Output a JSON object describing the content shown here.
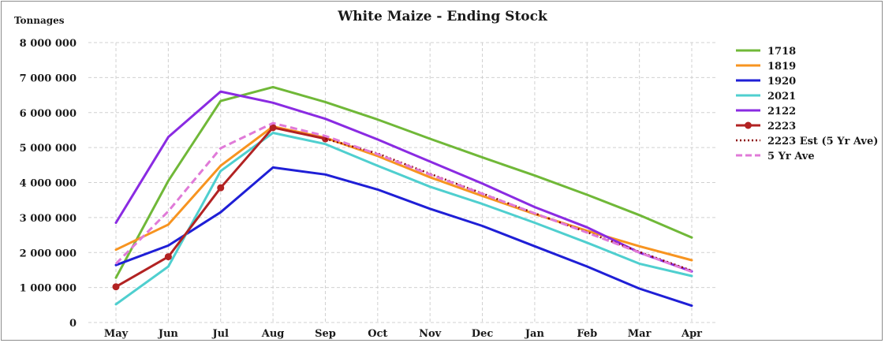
{
  "chart_data": {
    "type": "line",
    "title": "White Maize - Ending Stock",
    "ylabel": "Tonnages",
    "xlabel": "",
    "categories": [
      "May",
      "Jun",
      "Jul",
      "Aug",
      "Sep",
      "Oct",
      "Nov",
      "Dec",
      "Jan",
      "Feb",
      "Mar",
      "Apr"
    ],
    "ylim": [
      0,
      8000000
    ],
    "yticks": [
      0,
      1000000,
      2000000,
      3000000,
      4000000,
      5000000,
      6000000,
      7000000,
      8000000
    ],
    "ytick_labels": [
      "0",
      "1 000 000",
      "2 000 000",
      "3 000 000",
      "4 000 000",
      "5 000 000",
      "6 000 000",
      "7 000 000",
      "8 000 000"
    ],
    "grid": true,
    "legend_position": "right",
    "series": [
      {
        "name": "1718",
        "color": "#70b838",
        "style": "solid",
        "values": [
          1280000,
          4050000,
          6330000,
          6730000,
          6300000,
          5800000,
          5250000,
          4720000,
          4200000,
          3650000,
          3070000,
          2430000
        ]
      },
      {
        "name": "1819",
        "color": "#f79420",
        "style": "solid",
        "values": [
          2080000,
          2800000,
          4480000,
          5600000,
          5280000,
          4760000,
          4150000,
          3620000,
          3100000,
          2620000,
          2180000,
          1780000
        ]
      },
      {
        "name": "1920",
        "color": "#1f1fd6",
        "style": "solid",
        "values": [
          1640000,
          2200000,
          3150000,
          4430000,
          4230000,
          3800000,
          3250000,
          2760000,
          2180000,
          1600000,
          970000,
          480000
        ]
      },
      {
        "name": "2021",
        "color": "#4fcfcf",
        "style": "solid",
        "values": [
          520000,
          1600000,
          4330000,
          5420000,
          5100000,
          4480000,
          3880000,
          3390000,
          2850000,
          2280000,
          1680000,
          1330000
        ]
      },
      {
        "name": "2122",
        "color": "#8a2be2",
        "style": "solid",
        "values": [
          2850000,
          5300000,
          6600000,
          6280000,
          5820000,
          5230000,
          4600000,
          3970000,
          3300000,
          2720000,
          2000000,
          1460000
        ]
      },
      {
        "name": "2223",
        "color": "#b22222",
        "style": "solid-marker",
        "values": [
          1020000,
          1880000,
          3850000,
          5570000,
          5250000,
          null,
          null,
          null,
          null,
          null,
          null,
          null
        ]
      },
      {
        "name": "2223 Est (5 Yr Ave)",
        "color": "#8b0000",
        "style": "dotted",
        "values": [
          null,
          null,
          null,
          null,
          5250000,
          4830000,
          4250000,
          3690000,
          3120000,
          2580000,
          2020000,
          1480000
        ]
      },
      {
        "name": "5 Yr Ave",
        "color": "#e07ad8",
        "style": "dashed",
        "values": [
          1680000,
          3180000,
          4980000,
          5700000,
          5330000,
          4810000,
          4230000,
          3680000,
          3120000,
          2570000,
          2000000,
          1450000
        ]
      }
    ]
  }
}
